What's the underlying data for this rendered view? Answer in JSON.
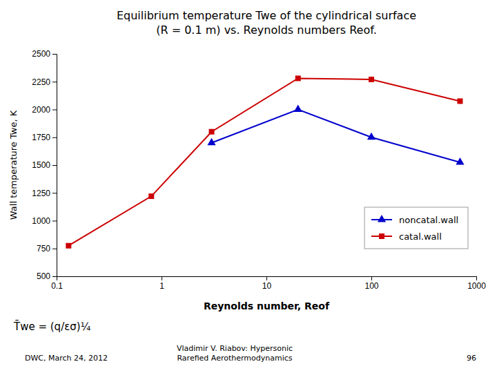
{
  "chart_data": {
    "type": "line",
    "title": "Equilibrium temperature Twe of the cylindrical surface\n(R = 0.1 m) vs. Reynolds numbers Reof.",
    "x_label": "Reynolds number, Reof",
    "y_label": "Wall temperature Twe, K",
    "log": "x",
    "grid": false,
    "legend": "lower right",
    "xlim": [
      0.1,
      1000
    ],
    "xticks": [
      0.1,
      1,
      10,
      100,
      1000
    ],
    "ylim": [
      500,
      2500
    ],
    "yticks": [
      500,
      750,
      1000,
      1250,
      1500,
      1750,
      2000,
      2250,
      2500
    ],
    "series": [
      {
        "name": "noncatal.wall",
        "color": "#0000cc",
        "marker": "triangle",
        "line_style": "solid",
        "x": [
          3.0,
          20.0,
          100.0,
          700.0
        ],
        "values": [
          1700,
          2000,
          1750,
          1525
        ]
      },
      {
        "name": "catal.wall",
        "color": "#cc0000",
        "marker": "square",
        "line_style": "solid",
        "x": [
          0.13,
          0.8,
          3.0,
          20.0,
          100.0,
          700.0
        ],
        "values": [
          775,
          1220,
          1800,
          2280,
          2270,
          2075
        ]
      }
    ],
    "annotations": [
      "T̄we = (q/εσ)¼",
      "DWC, March 24, 2012",
      "Vladimir V. Riabov: Hypersonic\nRarefied Aerothermodynamics",
      "96"
    ]
  }
}
